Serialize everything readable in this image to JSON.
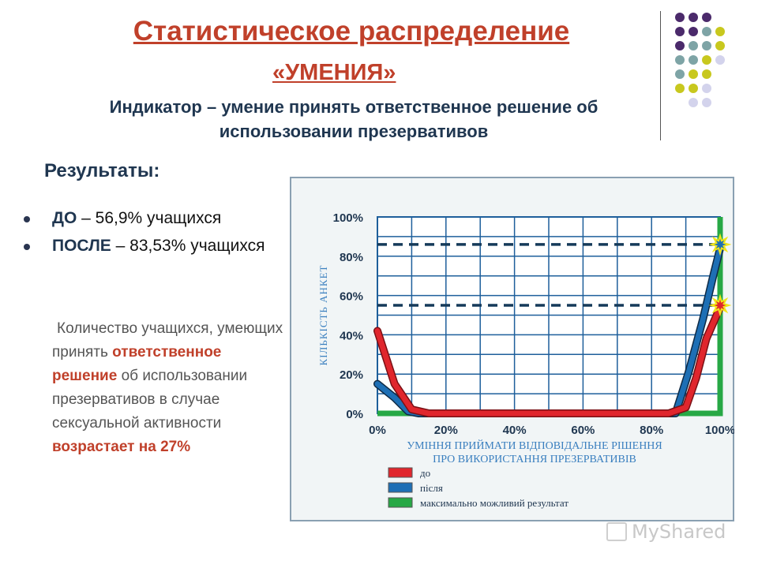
{
  "header": {
    "title": "Статистическое распределение",
    "subtitle": "«УМЕНИЯ»",
    "indicator": "Индикатор – умение принять ответственное решение об использовании презервативов"
  },
  "results": {
    "title": "Результаты:",
    "items": [
      {
        "label": "ДО",
        "text": " – 56,9% учащихся"
      },
      {
        "label": "ПОСЛЕ",
        "text": " – 83,53% учащихся"
      }
    ]
  },
  "description": {
    "part1": "Количество учащихся, умеющих принять ",
    "highlight1": "ответственное решение",
    "part2": " об использовании презервативов в случае сексуальной активности ",
    "highlight2": "возрастает на 27%"
  },
  "colors": {
    "accent_red": "#c0402a",
    "navy": "#1f3650",
    "series_before": "#e0262d",
    "series_after": "#1e6fb5",
    "series_max": "#27a845",
    "decor_purple": "#4b2a6b",
    "decor_teal": "#7ea4a6",
    "decor_olive": "#c8c81e",
    "decor_lavender": "#d3d3ec"
  },
  "chart_data": {
    "type": "line",
    "title": "",
    "xlabel": "УМІННЯ ПРИЙМАТИ ВІДПОВІДАЛЬНЕ РІШЕННЯ ПРО ВИКОРИСТАННЯ ПРЕЗЕРВАТИВІВ",
    "ylabel": "КІЛЬКІСТЬ АНКЕТ",
    "x_ticks": [
      "0%",
      "20%",
      "40%",
      "60%",
      "80%",
      "100%"
    ],
    "y_ticks": [
      "0%",
      "20%",
      "40%",
      "60%",
      "80%",
      "100%"
    ],
    "xlim": [
      0,
      100
    ],
    "ylim": [
      0,
      100
    ],
    "grid": true,
    "series": [
      {
        "name": "до",
        "color": "#e0262d",
        "points": [
          [
            0,
            42
          ],
          [
            5,
            15
          ],
          [
            10,
            2
          ],
          [
            15,
            0
          ],
          [
            50,
            0
          ],
          [
            85,
            0
          ],
          [
            90,
            3
          ],
          [
            93,
            18
          ],
          [
            96,
            38
          ],
          [
            100,
            54
          ]
        ]
      },
      {
        "name": "після",
        "color": "#1e6fb5",
        "points": [
          [
            0,
            15
          ],
          [
            5,
            8
          ],
          [
            9,
            1
          ],
          [
            12,
            0
          ],
          [
            50,
            0
          ],
          [
            87,
            0
          ],
          [
            91,
            22
          ],
          [
            95,
            48
          ],
          [
            98,
            70
          ],
          [
            100,
            84
          ]
        ]
      },
      {
        "name": "максимально можливий результат",
        "color": "#27a845",
        "points": [
          [
            0,
            0
          ],
          [
            100,
            0
          ],
          [
            100,
            100
          ]
        ]
      }
    ],
    "reference_lines": [
      {
        "y": 86,
        "style": "dashed"
      },
      {
        "y": 55,
        "style": "dashed"
      }
    ],
    "legend_placement": "bottom-left"
  },
  "watermark": "MyShared"
}
